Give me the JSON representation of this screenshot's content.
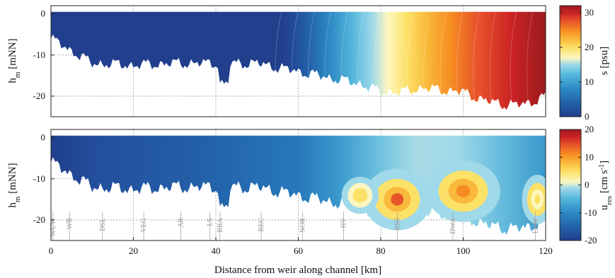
{
  "chart_data": [
    {
      "type": "heatmap",
      "panel": "top",
      "variable": "salinity",
      "ylabel": "h",
      "ylabel_sub": "m",
      "ylabel_unit": " [mNN]",
      "ylim": [
        -25,
        2
      ],
      "yticks": [
        0,
        -10,
        -20
      ],
      "xlim": [
        0,
        120
      ],
      "grid": true,
      "colorbar": {
        "label": "s [psu]",
        "range": [
          0,
          32
        ],
        "ticks": [
          0,
          10,
          20,
          30
        ],
        "colormap": [
          "#213f8c",
          "#2360a8",
          "#2d8ac4",
          "#55b7dc",
          "#9fd9ea",
          "#fdf6c0",
          "#fce168",
          "#f9b93a",
          "#f58b22",
          "#e8542a",
          "#cc2326",
          "#9b1a1f"
        ]
      },
      "x": [
        0,
        10,
        20,
        30,
        40,
        50,
        55,
        60,
        65,
        70,
        75,
        80,
        85,
        90,
        95,
        100,
        105,
        110,
        115,
        120
      ],
      "values": [
        0,
        0,
        0,
        0,
        0,
        0,
        0.5,
        2,
        5,
        8,
        11,
        14,
        17,
        19.5,
        21.5,
        23.5,
        25.5,
        27.5,
        29,
        31
      ],
      "bottom_depth": [
        -6,
        -12,
        -12.5,
        -12,
        -12,
        -12,
        -13,
        -14,
        -15,
        -16,
        -17,
        -19,
        -19,
        -18,
        -18.5,
        -19,
        -21,
        -22,
        -22,
        -20
      ]
    },
    {
      "type": "heatmap",
      "panel": "bottom",
      "variable": "residual current",
      "ylabel": "h",
      "ylabel_sub": "m",
      "ylabel_unit": " [mNN]",
      "ylim": [
        -25,
        2
      ],
      "yticks": [
        0,
        -10,
        -20
      ],
      "xlim": [
        0,
        120
      ],
      "xticks": [
        0,
        20,
        40,
        60,
        80,
        100,
        120
      ],
      "xlabel": "Distance from weir along channel [km]",
      "grid": true,
      "colorbar": {
        "label_main": "u",
        "label_sub": "res",
        "label_unit": " [cm s",
        "label_sup": "-1",
        "label_end": "]",
        "range": [
          -20,
          20
        ],
        "ticks": [
          20,
          10,
          0,
          -10,
          -20
        ],
        "colormap": [
          "#213f8c",
          "#2360a8",
          "#2d8ac4",
          "#55b7dc",
          "#9fd9ea",
          "#fdf6c0",
          "#fce168",
          "#f9b93a",
          "#f58b22",
          "#e8542a",
          "#cc2326",
          "#9b1a1f"
        ]
      },
      "stations": [
        {
          "name": "WUW",
          "km": 0.5
        },
        {
          "name": "WB",
          "km": 4.5
        },
        {
          "name": "DSL",
          "km": 12.5
        },
        {
          "name": "VEG",
          "km": 22.5
        },
        {
          "name": "AR",
          "km": 31.5
        },
        {
          "name": "LS",
          "km": 38.5
        },
        {
          "name": "BRA",
          "km": 41
        },
        {
          "name": "REC",
          "km": 51
        },
        {
          "name": "NOR",
          "km": 61
        },
        {
          "name": "HV",
          "km": 71
        },
        {
          "name": "RSS",
          "km": 84
        },
        {
          "name": "DWA",
          "km": 97.5
        },
        {
          "name": "LAW",
          "km": 117.5
        }
      ]
    }
  ]
}
